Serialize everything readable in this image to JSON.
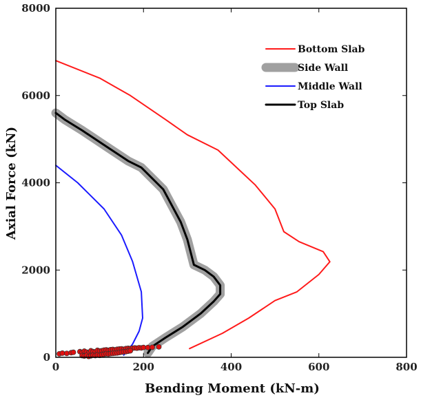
{
  "chart_data": {
    "type": "line",
    "xlabel": "Bending Moment (kN-m)",
    "ylabel": "Axial Force (kN)",
    "xlim": [
      0,
      800
    ],
    "ylim": [
      0,
      8000
    ],
    "xticks": [
      "0",
      "200",
      "400",
      "600",
      "800"
    ],
    "yticks": [
      "0",
      "2000",
      "4000",
      "6000",
      "8000"
    ],
    "grid": false,
    "legend_position": "top-right",
    "series": [
      {
        "name": "Bottom Slab",
        "color": "#ff1a1a",
        "width": 2,
        "points": [
          [
            0,
            6800
          ],
          [
            100,
            6400
          ],
          [
            170,
            6000
          ],
          [
            250,
            5450
          ],
          [
            300,
            5100
          ],
          [
            370,
            4750
          ],
          [
            455,
            3950
          ],
          [
            500,
            3400
          ],
          [
            520,
            2880
          ],
          [
            555,
            2650
          ],
          [
            610,
            2420
          ],
          [
            625,
            2190
          ],
          [
            600,
            1900
          ],
          [
            550,
            1500
          ],
          [
            500,
            1300
          ],
          [
            440,
            900
          ],
          [
            380,
            550
          ],
          [
            305,
            200
          ]
        ]
      },
      {
        "name": "Side Wall",
        "color": "#a0a0a0",
        "width": 13,
        "points": [
          [
            0,
            5600
          ],
          [
            20,
            5450
          ],
          [
            60,
            5200
          ],
          [
            120,
            4800
          ],
          [
            165,
            4500
          ],
          [
            195,
            4350
          ],
          [
            245,
            3850
          ],
          [
            285,
            3100
          ],
          [
            300,
            2700
          ],
          [
            315,
            2120
          ],
          [
            340,
            2000
          ],
          [
            360,
            1850
          ],
          [
            375,
            1650
          ],
          [
            375,
            1450
          ],
          [
            360,
            1280
          ],
          [
            330,
            1000
          ],
          [
            290,
            700
          ],
          [
            250,
            450
          ],
          [
            220,
            250
          ],
          [
            210,
            100
          ]
        ]
      },
      {
        "name": "Middle Wall",
        "color": "#1a1aff",
        "width": 2,
        "points": [
          [
            0,
            4400
          ],
          [
            50,
            4000
          ],
          [
            110,
            3400
          ],
          [
            150,
            2800
          ],
          [
            175,
            2200
          ],
          [
            195,
            1500
          ],
          [
            198,
            900
          ],
          [
            190,
            600
          ],
          [
            175,
            300
          ],
          [
            155,
            50
          ]
        ]
      },
      {
        "name": "Top Slab",
        "color": "#000000",
        "width": 3,
        "points": [
          [
            0,
            5600
          ],
          [
            20,
            5450
          ],
          [
            60,
            5200
          ],
          [
            120,
            4800
          ],
          [
            165,
            4500
          ],
          [
            195,
            4350
          ],
          [
            245,
            3850
          ],
          [
            285,
            3100
          ],
          [
            300,
            2700
          ],
          [
            315,
            2120
          ],
          [
            340,
            2000
          ],
          [
            360,
            1850
          ],
          [
            375,
            1650
          ],
          [
            375,
            1450
          ],
          [
            360,
            1280
          ],
          [
            330,
            1000
          ],
          [
            290,
            700
          ],
          [
            250,
            450
          ],
          [
            220,
            250
          ],
          [
            210,
            100
          ]
        ]
      }
    ],
    "scatter_series": {
      "marker_color": "#e01010",
      "edge_color": "#333333",
      "points": [
        [
          8,
          80
        ],
        [
          15,
          95
        ],
        [
          25,
          90
        ],
        [
          35,
          105
        ],
        [
          40,
          115
        ],
        [
          55,
          130
        ],
        [
          60,
          110
        ],
        [
          65,
          140
        ],
        [
          70,
          120
        ],
        [
          75,
          100
        ],
        [
          80,
          150
        ],
        [
          85,
          130
        ],
        [
          90,
          125
        ],
        [
          95,
          160
        ],
        [
          100,
          145
        ],
        [
          105,
          150
        ],
        [
          110,
          165
        ],
        [
          115,
          170
        ],
        [
          120,
          160
        ],
        [
          125,
          175
        ],
        [
          130,
          180
        ],
        [
          135,
          170
        ],
        [
          140,
          185
        ],
        [
          145,
          190
        ],
        [
          150,
          195
        ],
        [
          155,
          185
        ],
        [
          160,
          200
        ],
        [
          165,
          205
        ],
        [
          170,
          200
        ],
        [
          175,
          210
        ],
        [
          180,
          215
        ],
        [
          185,
          210
        ],
        [
          190,
          220
        ],
        [
          195,
          215
        ],
        [
          200,
          225
        ],
        [
          210,
          225
        ],
        [
          220,
          230
        ],
        [
          235,
          240
        ],
        [
          60,
          40
        ],
        [
          65,
          30
        ],
        [
          70,
          45
        ],
        [
          75,
          20
        ],
        [
          80,
          35
        ],
        [
          85,
          50
        ],
        [
          90,
          40
        ],
        [
          95,
          55
        ],
        [
          100,
          45
        ],
        [
          105,
          60
        ],
        [
          110,
          70
        ],
        [
          115,
          80
        ],
        [
          120,
          75
        ],
        [
          125,
          85
        ],
        [
          130,
          90
        ],
        [
          135,
          95
        ],
        [
          140,
          100
        ],
        [
          145,
          110
        ],
        [
          150,
          120
        ],
        [
          155,
          125
        ],
        [
          160,
          130
        ],
        [
          165,
          140
        ],
        [
          170,
          150
        ]
      ]
    }
  }
}
